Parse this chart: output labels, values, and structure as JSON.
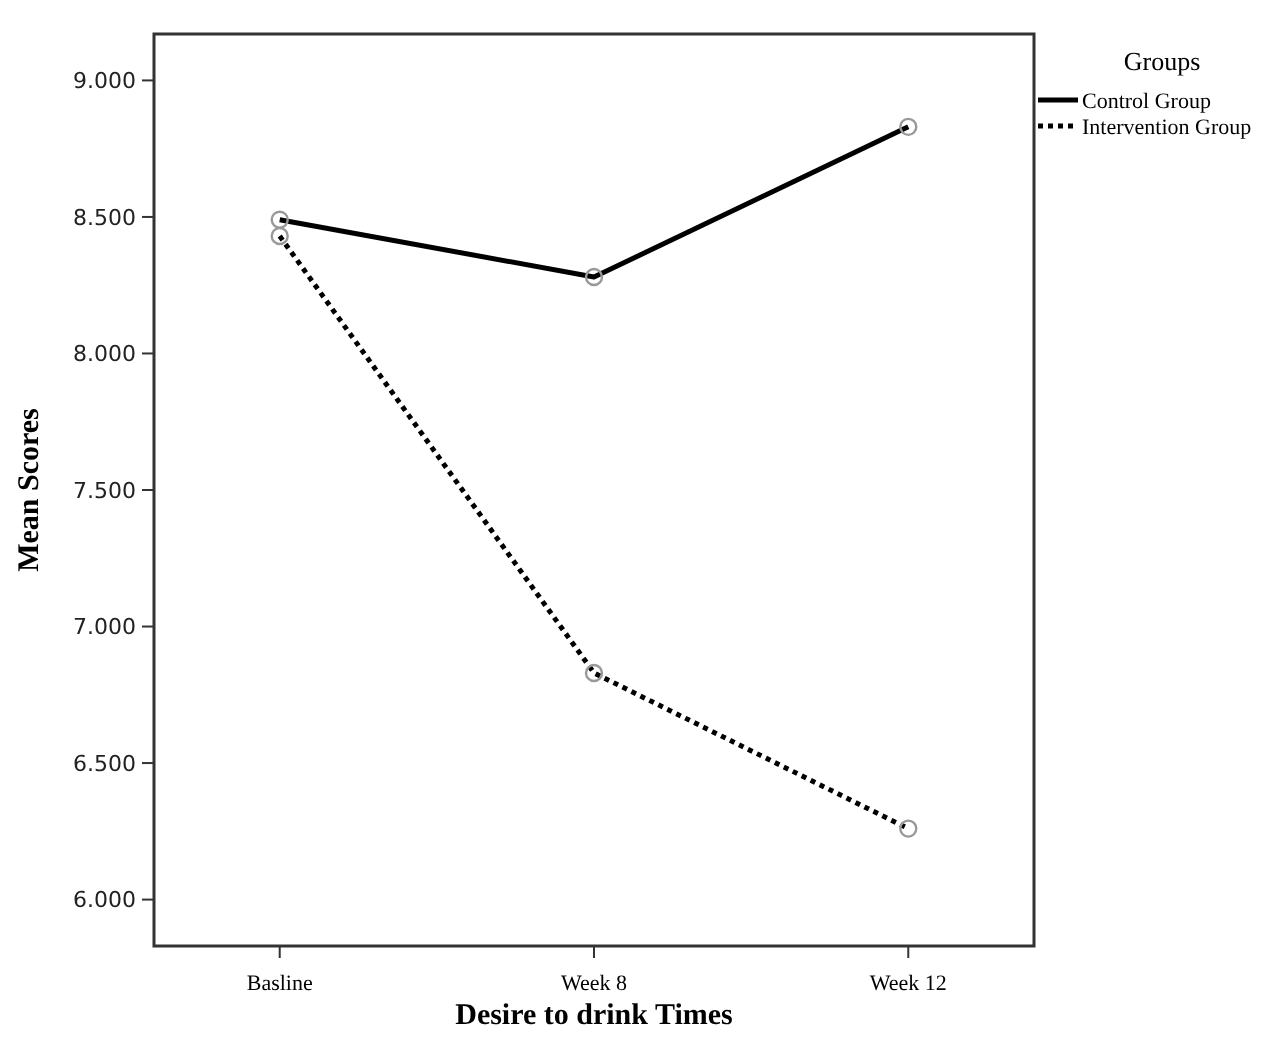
{
  "chart_data": {
    "type": "line",
    "xlabel": "Desire to drink Times",
    "ylabel": "Mean Scores",
    "legend_title": "Groups",
    "categories": [
      "Basline",
      "Week 8",
      "Week 12"
    ],
    "series": [
      {
        "name": "Control Group",
        "color": "#000000",
        "values": [
          8.49,
          8.28,
          8.83
        ],
        "line_style": "solid"
      },
      {
        "name": "Intervention Group",
        "color": "#000000",
        "values": [
          8.43,
          6.83,
          6.26
        ],
        "line_style": "dotted"
      }
    ],
    "ylim": [
      5.83,
      9.17
    ],
    "yticks": [
      {
        "value": 6,
        "label": "6.000"
      },
      {
        "value": 6.5,
        "label": "6.500"
      },
      {
        "value": 7,
        "label": "7.000"
      },
      {
        "value": 7.5,
        "label": "7.500"
      },
      {
        "value": 8,
        "label": "8.000"
      },
      {
        "value": 8.5,
        "label": "8.500"
      },
      {
        "value": 9,
        "label": "9.000"
      }
    ],
    "marker": "circle",
    "legend": "top right",
    "grid": false
  }
}
